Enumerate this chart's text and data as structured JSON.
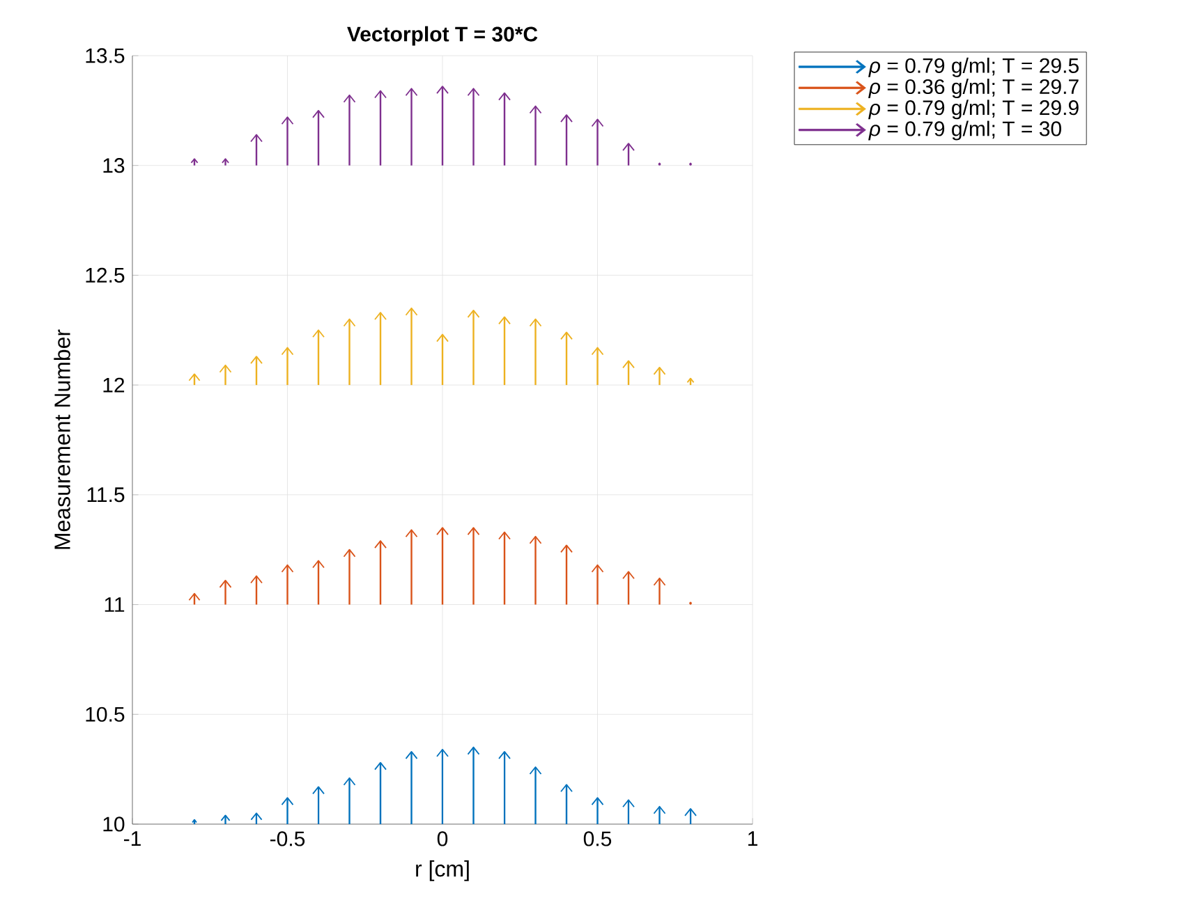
{
  "chart_data": {
    "type": "bar",
    "title": "Vectorplot T = 30*C",
    "xlabel": "r [cm]",
    "ylabel": "Measurement Number",
    "x": [
      -0.8,
      -0.7,
      -0.6,
      -0.5,
      -0.4,
      -0.3,
      -0.2,
      -0.1,
      0,
      0.1,
      0.2,
      0.3,
      0.4,
      0.5,
      0.6,
      0.7,
      0.8
    ],
    "series": [
      {
        "name": "*ρ* = 0.79 g/ml; T = 29.5",
        "color": "#0072bd",
        "base": [
          10,
          10,
          10,
          10,
          10,
          10,
          10,
          10,
          10,
          10,
          10,
          10,
          10,
          10,
          10,
          10,
          10
        ],
        "values": [
          0.02,
          0.04,
          0.05,
          0.12,
          0.17,
          0.21,
          0.28,
          0.33,
          0.34,
          0.35,
          0.33,
          0.26,
          0.18,
          0.12,
          0.11,
          0.08,
          0.07
        ]
      },
      {
        "name": "*ρ* = 0.36 g/ml; T = 29.7",
        "color": "#d95319",
        "base": [
          11,
          11,
          11,
          11,
          11,
          11,
          11,
          11,
          11,
          11,
          11,
          11,
          11,
          11,
          11,
          11,
          11
        ],
        "values": [
          0.05,
          0.11,
          0.13,
          0.18,
          0.2,
          0.25,
          0.29,
          0.34,
          0.35,
          0.35,
          0.33,
          0.31,
          0.27,
          0.18,
          0.15,
          0.12,
          0.01
        ]
      },
      {
        "name": "*ρ* = 0.79 g/ml; T = 29.9",
        "color": "#edb120",
        "base": [
          12,
          12,
          12,
          12,
          12,
          12,
          12,
          12,
          12,
          12,
          12,
          12,
          12,
          12,
          12,
          12,
          12
        ],
        "values": [
          0.05,
          0.09,
          0.13,
          0.17,
          0.25,
          0.3,
          0.33,
          0.35,
          0.23,
          0.34,
          0.31,
          0.3,
          0.24,
          0.17,
          0.11,
          0.08,
          0.03
        ]
      },
      {
        "name": "*ρ* = 0.79 g/ml; T = 30",
        "color": "#7e2f8e",
        "base": [
          13,
          13,
          13,
          13,
          13,
          13,
          13,
          13,
          13,
          13,
          13,
          13,
          13,
          13,
          13,
          13,
          13
        ],
        "values": [
          0.03,
          0.03,
          0.14,
          0.22,
          0.25,
          0.32,
          0.34,
          0.35,
          0.36,
          0.35,
          0.33,
          0.27,
          0.23,
          0.21,
          0.1,
          0.01,
          0.01
        ]
      }
    ],
    "xlim": [
      -1,
      1
    ],
    "ylim": [
      10,
      13.5
    ],
    "xticks": [
      -1,
      -0.5,
      0,
      0.5,
      1
    ],
    "yticks": [
      10,
      10.5,
      11,
      11.5,
      12,
      12.5,
      13,
      13.5
    ],
    "grid": true,
    "legend": "top right"
  }
}
